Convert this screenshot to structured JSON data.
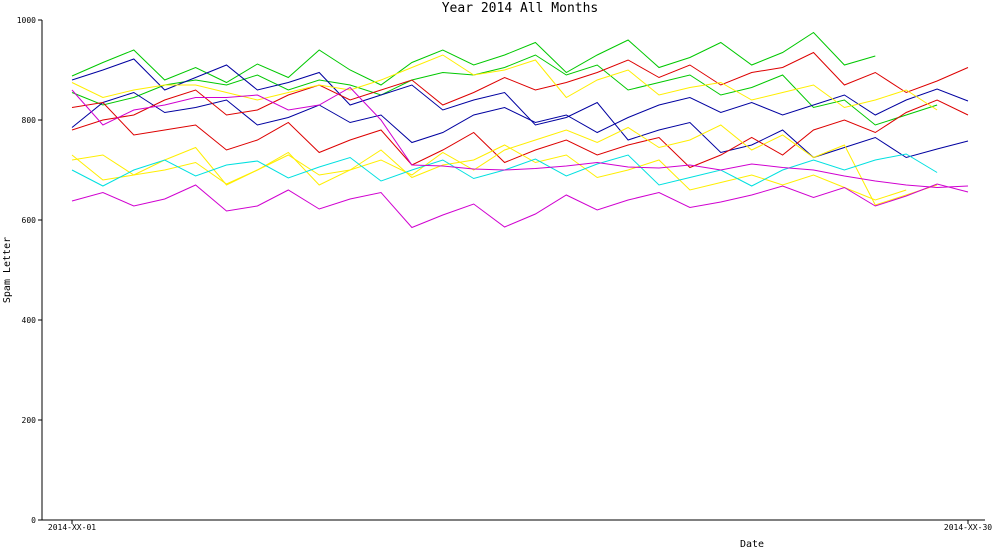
{
  "chart_data": {
    "type": "line",
    "title": "Year 2014 All Months",
    "xlabel": "Date",
    "ylabel": "Spam Letter",
    "ylim": [
      0,
      1000
    ],
    "y_ticks": [
      "0",
      "200",
      "400",
      "600",
      "800",
      "1000"
    ],
    "x_tick_labels": [
      "2014-XX-01",
      "2014-XX-30"
    ],
    "x_tick_positions": [
      1,
      30
    ],
    "xlim": [
      1,
      30
    ],
    "grid": false,
    "legend": "none",
    "series": [
      {
        "color": "#00c800",
        "values": [
          888,
          915,
          940,
          880,
          905,
          875,
          912,
          885,
          940,
          900,
          870,
          915,
          940,
          910,
          930,
          955,
          895,
          930,
          960,
          905,
          925,
          955,
          910,
          935,
          975,
          910,
          928
        ]
      },
      {
        "color": "#00c800",
        "values": [
          855,
          830,
          845,
          870,
          880,
          870,
          890,
          860,
          880,
          870,
          850,
          880,
          895,
          890,
          905,
          930,
          890,
          910,
          860,
          875,
          890,
          850,
          865,
          890,
          825,
          840,
          790,
          810,
          830
        ]
      },
      {
        "color": "#0000a0",
        "values": [
          880,
          900,
          922,
          860,
          885,
          910,
          860,
          875,
          895,
          830,
          850,
          870,
          820,
          840,
          855,
          790,
          805,
          835,
          760,
          780,
          795,
          735,
          750,
          780,
          725,
          745,
          765,
          725,
          742,
          758
        ]
      },
      {
        "color": "#0000a0",
        "values": [
          785,
          835,
          855,
          815,
          825,
          840,
          790,
          805,
          830,
          795,
          810,
          755,
          775,
          810,
          825,
          795,
          810,
          775,
          805,
          830,
          845,
          815,
          835,
          810,
          830,
          850,
          810,
          840,
          862,
          838
        ]
      },
      {
        "color": "#dd0000",
        "values": [
          825,
          835,
          770,
          780,
          790,
          740,
          760,
          795,
          735,
          760,
          780,
          710,
          740,
          775,
          715,
          740,
          760,
          730,
          750,
          765,
          705,
          730,
          765,
          730,
          780,
          800,
          775,
          815,
          840,
          810
        ]
      },
      {
        "color": "#dd0000",
        "values": [
          780,
          800,
          810,
          840,
          860,
          810,
          820,
          850,
          870,
          840,
          860,
          880,
          830,
          855,
          885,
          860,
          875,
          895,
          920,
          885,
          910,
          870,
          895,
          905,
          935,
          870,
          895,
          855,
          878,
          905
        ]
      },
      {
        "color": "#ffee00",
        "values": [
          730,
          680,
          690,
          720,
          745,
          670,
          700,
          730,
          690,
          700,
          720,
          690,
          735,
          700,
          740,
          760,
          780,
          755,
          785,
          745,
          760,
          790,
          740,
          770,
          725,
          750,
          630,
          650,
          670
        ]
      },
      {
        "color": "#ffee00",
        "values": [
          875,
          845,
          860,
          870,
          870,
          855,
          840,
          855,
          870,
          860,
          880,
          905,
          930,
          890,
          900,
          920,
          845,
          880,
          900,
          850,
          865,
          875,
          840,
          855,
          870,
          825,
          840,
          860,
          820
        ]
      },
      {
        "color": "#ffee00",
        "values": [
          720,
          730,
          690,
          700,
          715,
          672,
          700,
          735,
          670,
          700,
          740,
          685,
          710,
          720,
          750,
          715,
          730,
          685,
          700,
          720,
          660,
          675,
          690,
          670,
          690,
          665,
          640,
          660
        ]
      },
      {
        "color": "#00e0e0",
        "values": [
          700,
          668,
          700,
          720,
          688,
          710,
          718,
          684,
          706,
          725,
          678,
          700,
          720,
          683,
          700,
          722,
          688,
          712,
          730,
          670,
          685,
          700,
          668,
          700,
          720,
          700,
          720,
          732,
          695
        ]
      },
      {
        "color": "#d000d0",
        "values": [
          638,
          655,
          628,
          642,
          670,
          618,
          628,
          660,
          622,
          642,
          655,
          585,
          610,
          632,
          586,
          612,
          650,
          620,
          640,
          655,
          625,
          636,
          650,
          668,
          645,
          665,
          628,
          648,
          672,
          656
        ]
      },
      {
        "color": "#d000d0",
        "values": [
          860,
          790,
          820,
          830,
          845,
          845,
          850,
          820,
          830,
          865,
          800,
          710,
          708,
          702,
          700,
          703,
          708,
          715,
          706,
          704,
          710,
          700,
          712,
          705,
          700,
          688,
          678,
          670,
          665,
          668
        ]
      }
    ]
  }
}
